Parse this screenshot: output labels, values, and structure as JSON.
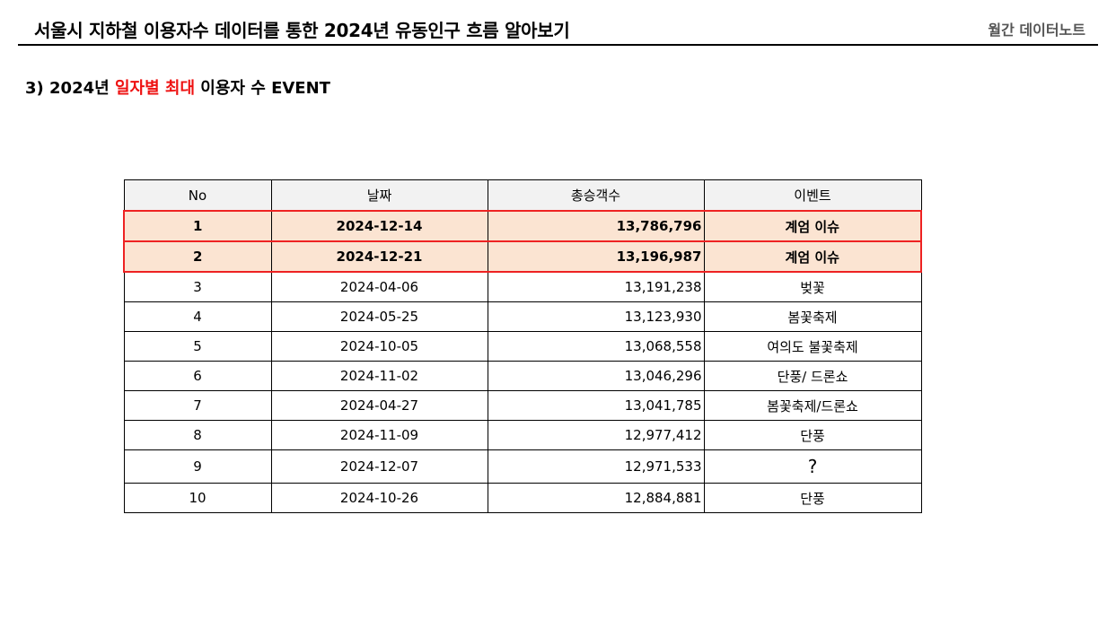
{
  "header": {
    "title": "서울시 지하철 이용자수 데이터를 통한 2024년 유동인구 흐름 알아보기",
    "right_label": "월간 데이터노트"
  },
  "section": {
    "prefix": "3) 2024년 ",
    "highlight": "일자별 최대",
    "suffix": " 이용자 수 EVENT",
    "highlight_color": "#ee1111"
  },
  "table": {
    "columns": [
      "No",
      "날짜",
      "총승객수",
      "이벤트"
    ],
    "rows": [
      {
        "no": "1",
        "date": "2024-12-14",
        "total": "13,786,796",
        "event": "계엄 이슈",
        "highlighted": true
      },
      {
        "no": "2",
        "date": "2024-12-21",
        "total": "13,196,987",
        "event": "계엄 이슈",
        "highlighted": true
      },
      {
        "no": "3",
        "date": "2024-04-06",
        "total": "13,191,238",
        "event": "벚꽃"
      },
      {
        "no": "4",
        "date": "2024-05-25",
        "total": "13,123,930",
        "event": "봄꽃축제"
      },
      {
        "no": "5",
        "date": "2024-10-05",
        "total": "13,068,558",
        "event": "여의도 불꽃축제"
      },
      {
        "no": "6",
        "date": "2024-11-02",
        "total": "13,046,296",
        "event": "단풍/ 드론쇼"
      },
      {
        "no": "7",
        "date": "2024-04-27",
        "total": "13,041,785",
        "event": "봄꽃축제/드론쇼"
      },
      {
        "no": "8",
        "date": "2024-11-09",
        "total": "12,977,412",
        "event": "단풍"
      },
      {
        "no": "9",
        "date": "2024-12-07",
        "total": "12,971,533",
        "event": "?"
      },
      {
        "no": "10",
        "date": "2024-10-26",
        "total": "12,884,881",
        "event": "단풍"
      }
    ],
    "highlight_fill": "#fbe4d2",
    "highlight_border": "#ee2222"
  }
}
